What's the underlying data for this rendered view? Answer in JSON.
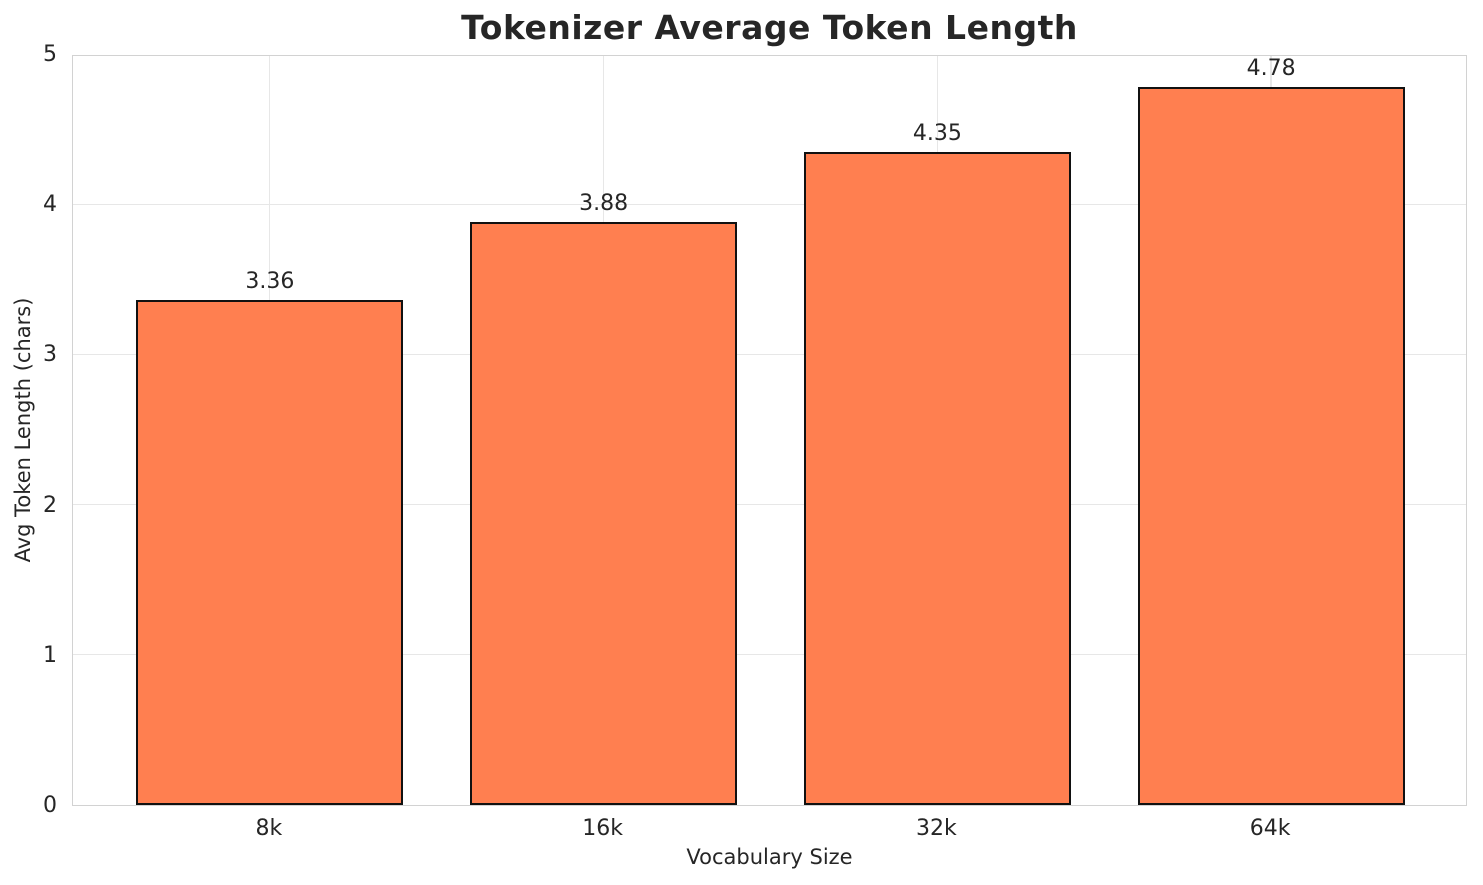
{
  "chart_data": {
    "type": "bar",
    "title": "Tokenizer Average Token Length",
    "xlabel": "Vocabulary Size",
    "ylabel": "Avg Token Length (chars)",
    "categories": [
      "8k",
      "16k",
      "32k",
      "64k"
    ],
    "values": [
      3.36,
      3.88,
      4.35,
      4.78
    ],
    "value_labels": [
      "3.36",
      "3.88",
      "4.35",
      "4.78"
    ],
    "yticks": [
      0,
      1,
      2,
      3,
      4,
      5
    ],
    "ytick_labels": [
      "0",
      "1",
      "2",
      "3",
      "4",
      "5"
    ],
    "ylim": [
      0,
      5
    ],
    "xlim": [
      -0.59,
      3.59
    ],
    "bar_width_units": 0.8,
    "grid": true,
    "legend": "none",
    "colors": {
      "bar_fill": "#FF7F50",
      "bar_edge": "#111111",
      "grid": "#e7e7e7",
      "spine": "#d2d2d2",
      "text": "#262626",
      "background": "#ffffff"
    }
  }
}
